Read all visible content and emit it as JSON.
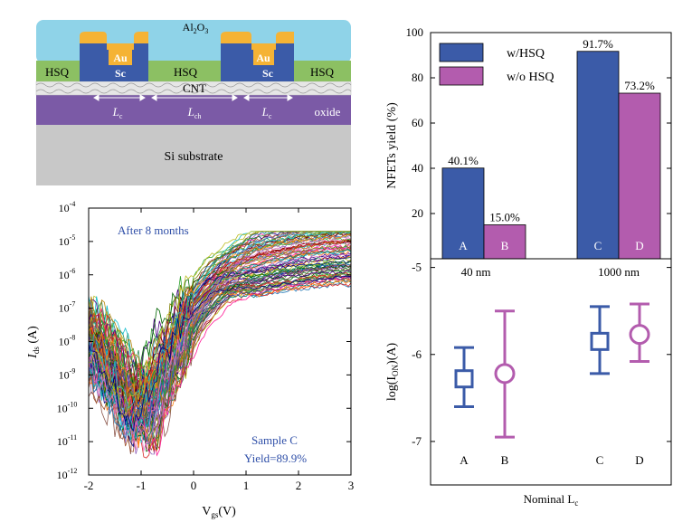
{
  "device_schematic": {
    "al2o3_label": "Al2O3",
    "au_labels": [
      "Au",
      "Au"
    ],
    "sc_labels": [
      "Sc",
      "Sc"
    ],
    "hsq_labels": [
      "HSQ",
      "HSQ",
      "HSQ"
    ],
    "cnt_label": "CNT",
    "lc_label": "L",
    "lc_sub": "c",
    "lch_label": "L",
    "lch_sub": "ch",
    "oxide_label": "oxide",
    "substrate_label": "Si substrate",
    "colors": {
      "al2o3": "#8fd3e8",
      "au": "#f5b335",
      "sc": "#3b5ba8",
      "hsq": "#8cc063",
      "cnt": "#e8e8e8",
      "oxide": "#7b5aa6",
      "substrate": "#c8c8c8"
    }
  },
  "chart_data": [
    {
      "type": "line",
      "annotation": "After 8 months",
      "sample_label": "Sample C",
      "yield_label": "Yield=89.9%",
      "xlabel": "V",
      "xlabel_sub": "gs",
      "xlabel_unit": "(V)",
      "ylabel": "I",
      "ylabel_sub": "ds",
      "ylabel_unit": " (A)",
      "x_ticks": [
        "-2",
        "-1",
        "0",
        "1",
        "2",
        "3"
      ],
      "y_tick_exponents": [
        "-4",
        "-5",
        "-6",
        "-7",
        "-8",
        "-9",
        "-10",
        "-11",
        "-12"
      ],
      "y_tick_base": "10",
      "xlim": [
        -2,
        3
      ],
      "ylim_log10": [
        -12,
        -4
      ],
      "yscale": "log",
      "curve_count": 90,
      "curve_model": {
        "x": [
          -2.0,
          -1.5,
          -1.2,
          -1.0,
          -0.8,
          -0.5,
          0.0,
          0.5,
          1.0,
          1.5,
          2.0,
          2.5,
          3.0
        ],
        "log10_ids_typical": [
          -8.0,
          -9.0,
          -9.8,
          -10.3,
          -9.9,
          -8.7,
          -7.0,
          -6.0,
          -5.6,
          -5.4,
          -5.25,
          -5.15,
          -5.1
        ]
      }
    },
    {
      "type": "bar",
      "ylabel": "NFETs yield (%)",
      "ylim": [
        0,
        100
      ],
      "y_ticks": [
        "20",
        "40",
        "60",
        "80",
        "100"
      ],
      "categories": [
        "40 nm",
        "1000 nm"
      ],
      "series": [
        {
          "name": "w/HSQ",
          "color": "#3b5ba8",
          "values": [
            40.1,
            91.7
          ],
          "value_labels": [
            "40.1%",
            "91.7%"
          ],
          "bar_letters": [
            "A",
            "C"
          ]
        },
        {
          "name": "w/o HSQ",
          "color": "#b35cae",
          "values": [
            15.0,
            73.2
          ],
          "value_labels": [
            "15.0%",
            "73.2%"
          ],
          "bar_letters": [
            "B",
            "D"
          ]
        }
      ],
      "legend_position": "top-left"
    },
    {
      "type": "scatter",
      "ylabel": "log(I",
      "ylabel_sub": "ON",
      "ylabel_unit": ")(A)",
      "xlabel": "Nominal L",
      "xlabel_sub": "c",
      "ylim": [
        -7.5,
        -4.9
      ],
      "y_ticks": [
        "-5",
        "-6",
        "-7"
      ],
      "points": [
        {
          "label": "A",
          "x": 1,
          "mean": -6.28,
          "low": -6.6,
          "high": -5.92,
          "marker": "square",
          "color": "#3b5ba8"
        },
        {
          "label": "B",
          "x": 2,
          "mean": -6.22,
          "low": -6.95,
          "high": -5.5,
          "marker": "circle",
          "color": "#b35cae"
        },
        {
          "label": "C",
          "x": 4,
          "mean": -5.85,
          "low": -6.22,
          "high": -5.45,
          "marker": "square",
          "color": "#3b5ba8"
        },
        {
          "label": "D",
          "x": 5,
          "mean": -5.77,
          "low": -6.08,
          "high": -5.42,
          "marker": "circle",
          "color": "#b35cae"
        }
      ]
    }
  ]
}
